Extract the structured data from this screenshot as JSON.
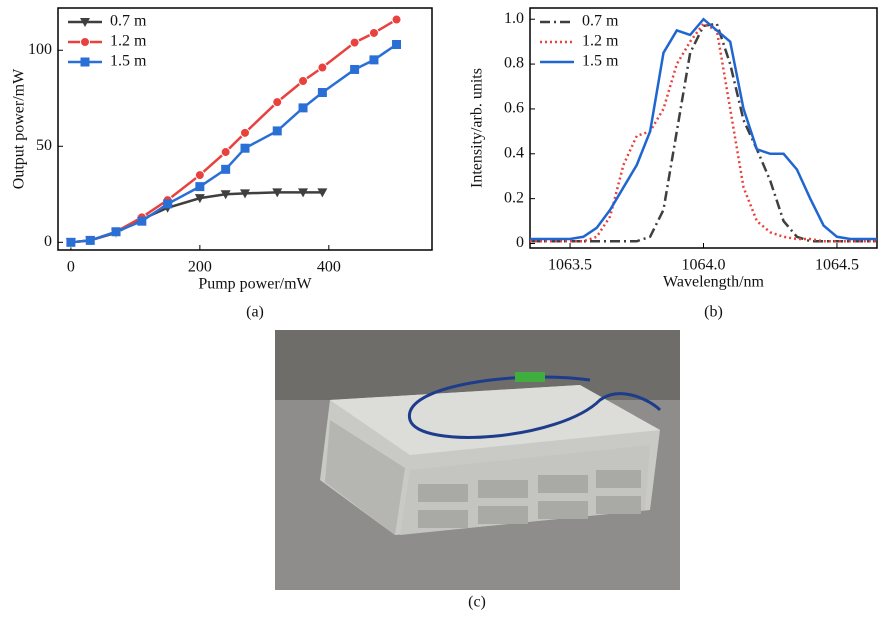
{
  "chart_data": [
    {
      "type": "line",
      "caption": "(a)",
      "xlabel": "Pump power/mW",
      "ylabel": "Output power/mW",
      "xlim": [
        -20,
        560
      ],
      "ylim": [
        -4,
        122
      ],
      "xticks": [
        0,
        200,
        400
      ],
      "yticks": [
        0,
        50,
        100
      ],
      "legend": "upper left",
      "series": [
        {
          "name": "0.7 m",
          "color": "#3f3f3f",
          "marker": "triangle-down",
          "x": [
            0,
            30,
            70,
            110,
            150,
            200,
            240,
            270,
            320,
            360,
            390
          ],
          "values": [
            0,
            1,
            5,
            12,
            18,
            23,
            25,
            25.5,
            26,
            26,
            26
          ]
        },
        {
          "name": "1.2 m",
          "color": "#e8413e",
          "marker": "circle",
          "x": [
            0,
            30,
            70,
            110,
            150,
            200,
            240,
            270,
            320,
            360,
            390,
            440,
            470,
            505
          ],
          "values": [
            0,
            1,
            5.5,
            13,
            22,
            35,
            47,
            57,
            73,
            84,
            91,
            104,
            109,
            116
          ]
        },
        {
          "name": "1.5 m",
          "color": "#2a6fd6",
          "marker": "square",
          "x": [
            0,
            30,
            70,
            110,
            150,
            200,
            240,
            270,
            320,
            360,
            390,
            440,
            470,
            505
          ],
          "values": [
            0,
            1,
            5.5,
            11,
            20,
            29,
            38,
            49,
            58,
            70,
            78,
            90,
            95,
            103
          ]
        }
      ]
    },
    {
      "type": "line",
      "caption": "(b)",
      "xlabel": "Wavelength/nm",
      "ylabel": "Intensity/arb. units",
      "xlim": [
        1063.35,
        1064.65
      ],
      "ylim": [
        -0.02,
        1.05
      ],
      "xticks": [
        1063.5,
        {
          "value": 1064,
          "label": "1064.0"
        },
        1064.5
      ],
      "yticks": [
        0,
        0.2,
        0.4,
        0.6,
        0.8,
        {
          "value": 1,
          "label": "1.0"
        }
      ],
      "legend": "upper left",
      "x": [
        1063.35,
        1063.4,
        1063.45,
        1063.5,
        1063.55,
        1063.6,
        1063.65,
        1063.7,
        1063.75,
        1063.8,
        1063.85,
        1063.9,
        1063.95,
        1064,
        1064.05,
        1064.1,
        1064.15,
        1064.2,
        1064.25,
        1064.3,
        1064.35,
        1064.4,
        1064.45,
        1064.5,
        1064.55,
        1064.6,
        1064.65
      ],
      "series": [
        {
          "name": "0.7 m",
          "color": "#3f3f3f",
          "dash": "dashdot",
          "values": [
            0.01,
            0.01,
            0.01,
            0.01,
            0.01,
            0.01,
            0.01,
            0.01,
            0.01,
            0.03,
            0.15,
            0.5,
            0.85,
            0.97,
            0.98,
            0.8,
            0.55,
            0.42,
            0.28,
            0.1,
            0.03,
            0.01,
            0.01,
            0.01,
            0.01,
            0.01,
            0.01
          ]
        },
        {
          "name": "1.2 m",
          "color": "#e8413e",
          "dash": "dotted",
          "values": [
            0.01,
            0.01,
            0.01,
            0.01,
            0.01,
            0.03,
            0.12,
            0.35,
            0.48,
            0.5,
            0.6,
            0.8,
            0.9,
            0.98,
            0.95,
            0.6,
            0.25,
            0.1,
            0.05,
            0.03,
            0.02,
            0.02,
            0.01,
            0.01,
            0.01,
            0.01,
            0.01
          ]
        },
        {
          "name": "1.5 m",
          "color": "#1f66d1",
          "dash": "solid",
          "values": [
            0.02,
            0.02,
            0.02,
            0.02,
            0.03,
            0.07,
            0.15,
            0.25,
            0.35,
            0.5,
            0.85,
            0.95,
            0.93,
            1,
            0.95,
            0.9,
            0.6,
            0.42,
            0.4,
            0.4,
            0.33,
            0.2,
            0.08,
            0.03,
            0.02,
            0.02,
            0.02
          ]
        }
      ]
    }
  ],
  "photo": {
    "caption": "(c)"
  }
}
